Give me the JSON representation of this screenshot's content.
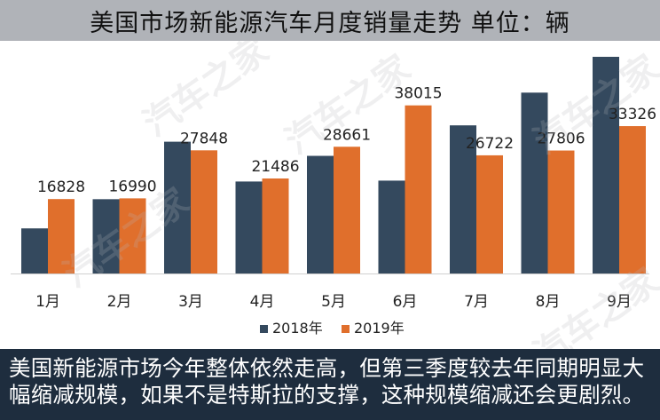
{
  "title": "美国市场新能源汽车月度销量走势 单位：辆",
  "caption": "美国新能源市场今年整体依然走高，但第三季度较去年同期明显大幅缩减规模，如果不是特斯拉的支撑，这种规模缩减还会更剧烈。",
  "watermark": "汽车之家",
  "chart_data": {
    "type": "bar",
    "categories": [
      "1月",
      "2月",
      "3月",
      "4月",
      "5月",
      "6月",
      "7月",
      "8月",
      "9月"
    ],
    "series": [
      {
        "name": "2018年",
        "color": "#34495e",
        "values": [
          10200,
          16800,
          29800,
          20800,
          26600,
          21000,
          33500,
          40900,
          49000
        ],
        "labels": []
      },
      {
        "name": "2019年",
        "color": "#e06f2c",
        "values": [
          16828,
          16990,
          27848,
          21486,
          28661,
          38015,
          26722,
          27806,
          33326
        ],
        "labels": [
          "16828",
          "16990",
          "27848",
          "21486",
          "28661",
          "38015",
          "26722",
          "27806",
          "33326"
        ]
      }
    ],
    "ylim": [
      0,
      50000
    ],
    "legend_position": "bottom"
  }
}
